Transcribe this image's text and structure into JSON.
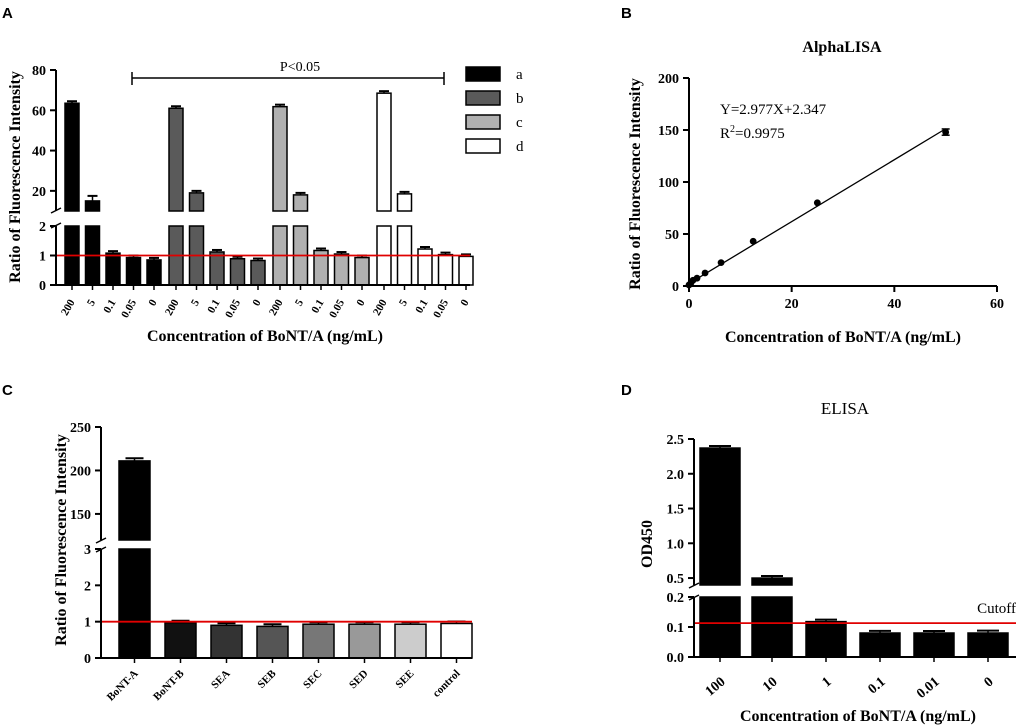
{
  "panels": {
    "A": {
      "letter": "A"
    },
    "B": {
      "letter": "B"
    },
    "C": {
      "letter": "C"
    },
    "D": {
      "letter": "D"
    }
  },
  "chart_data": [
    {
      "id": "A",
      "type": "bar",
      "title": "",
      "xlabel": "Concentration of BoNT/A (ng/mL)",
      "ylabel": "Ratio of Fluorescence Intensity",
      "broken_axis": {
        "lower": [
          0,
          2
        ],
        "upper": [
          10,
          80
        ]
      },
      "lower_ticks": [
        "0",
        "1",
        "2"
      ],
      "upper_ticks": [
        "20",
        "40",
        "60",
        "80"
      ],
      "categories": [
        "200",
        "5",
        "0.1",
        "0.05",
        "0"
      ],
      "series": [
        {
          "name": "a",
          "color": "#000000",
          "values": [
            63.5,
            15,
            1.08,
            0.93,
            0.85
          ],
          "errors": [
            0.8,
            2.5,
            0.03,
            0.03,
            0.03
          ]
        },
        {
          "name": "b",
          "color": "#5a5a5a",
          "values": [
            61,
            19,
            1.12,
            0.89,
            0.83
          ],
          "errors": [
            1.0,
            0.5,
            0.05,
            0.05,
            0.03
          ]
        },
        {
          "name": "c",
          "color": "#b0b0b0",
          "values": [
            61.8,
            18,
            1.17,
            1.05,
            0.93
          ],
          "errors": [
            0.6,
            0.3,
            0.03,
            0.03,
            0.03
          ]
        },
        {
          "name": "d",
          "color": "#ffffff",
          "values": [
            68.5,
            18.5,
            1.22,
            1.03,
            0.97
          ],
          "errors": [
            0.5,
            0.3,
            0.05,
            0.03,
            0.02
          ]
        }
      ],
      "reference_line": 1.0,
      "annotation": "P<0.05"
    },
    {
      "id": "B",
      "type": "scatter",
      "title": "AlphaLISA",
      "xlabel": "Concentration of BoNT/A (ng/mL)",
      "ylabel": "Ratio of Fluorescence Intensity",
      "xlim": [
        0,
        60
      ],
      "ylim": [
        0,
        200
      ],
      "xticks": [
        "0",
        "20",
        "40",
        "60"
      ],
      "yticks": [
        "0",
        "50",
        "100",
        "150",
        "200"
      ],
      "x": [
        0,
        0.39,
        0.78,
        1.56,
        3.125,
        6.25,
        12.5,
        25,
        50
      ],
      "y": [
        1.0,
        3.0,
        5.5,
        7.5,
        12.5,
        22.5,
        43,
        80,
        148
      ],
      "y_err": [
        0.3,
        0.3,
        0.3,
        0.3,
        0.5,
        0.5,
        0.8,
        1.0,
        3.0
      ],
      "fit": {
        "slope": 2.977,
        "intercept": 2.347
      },
      "equation": "Y=2.977X+2.347",
      "r2_prefix": "R",
      "r2_sup": "2",
      "r2_value": "=0.9975"
    },
    {
      "id": "C",
      "type": "bar",
      "title": "",
      "xlabel": "",
      "ylabel": "Ratio of Fluorescence Intensity",
      "broken_axis": {
        "lower": [
          0,
          3
        ],
        "upper": [
          120,
          250
        ]
      },
      "lower_ticks": [
        "0",
        "1",
        "2",
        "3"
      ],
      "upper_ticks": [
        "150",
        "200",
        "250"
      ],
      "categories": [
        "BoNT-A",
        "BoNT-B",
        "SEA",
        "SEB",
        "SEC",
        "SED",
        "SEE",
        "control"
      ],
      "values": [
        211,
        0.97,
        0.9,
        0.87,
        0.93,
        0.93,
        0.93,
        0.95
      ],
      "errors": [
        3,
        0.02,
        0.01,
        0.06,
        0.05,
        0.03,
        0.03,
        0.02
      ],
      "colors": [
        "#000000",
        "#111111",
        "#333333",
        "#555555",
        "#777777",
        "#999999",
        "#cccccc",
        "#ffffff"
      ],
      "reference_line": 1.0
    },
    {
      "id": "D",
      "type": "bar",
      "title": "ELISA",
      "xlabel": "Concentration of BoNT/A (ng/mL)",
      "ylabel": "OD450",
      "broken_axis": {
        "lower": [
          0,
          0.2
        ],
        "upper": [
          0.4,
          2.5
        ]
      },
      "lower_ticks": [
        "0.0",
        "0.1",
        "0.2"
      ],
      "upper_ticks": [
        "0.5",
        "1.0",
        "1.5",
        "2.0",
        "2.5"
      ],
      "categories": [
        "100",
        "10",
        "1",
        "0.1",
        "0.01",
        "0"
      ],
      "values": [
        2.37,
        0.5,
        0.118,
        0.08,
        0.08,
        0.08
      ],
      "errors": [
        0.03,
        0.015,
        0.004,
        0.007,
        0.006,
        0.008
      ],
      "reference_line": 0.113,
      "reference_label": "Cutoff"
    }
  ]
}
